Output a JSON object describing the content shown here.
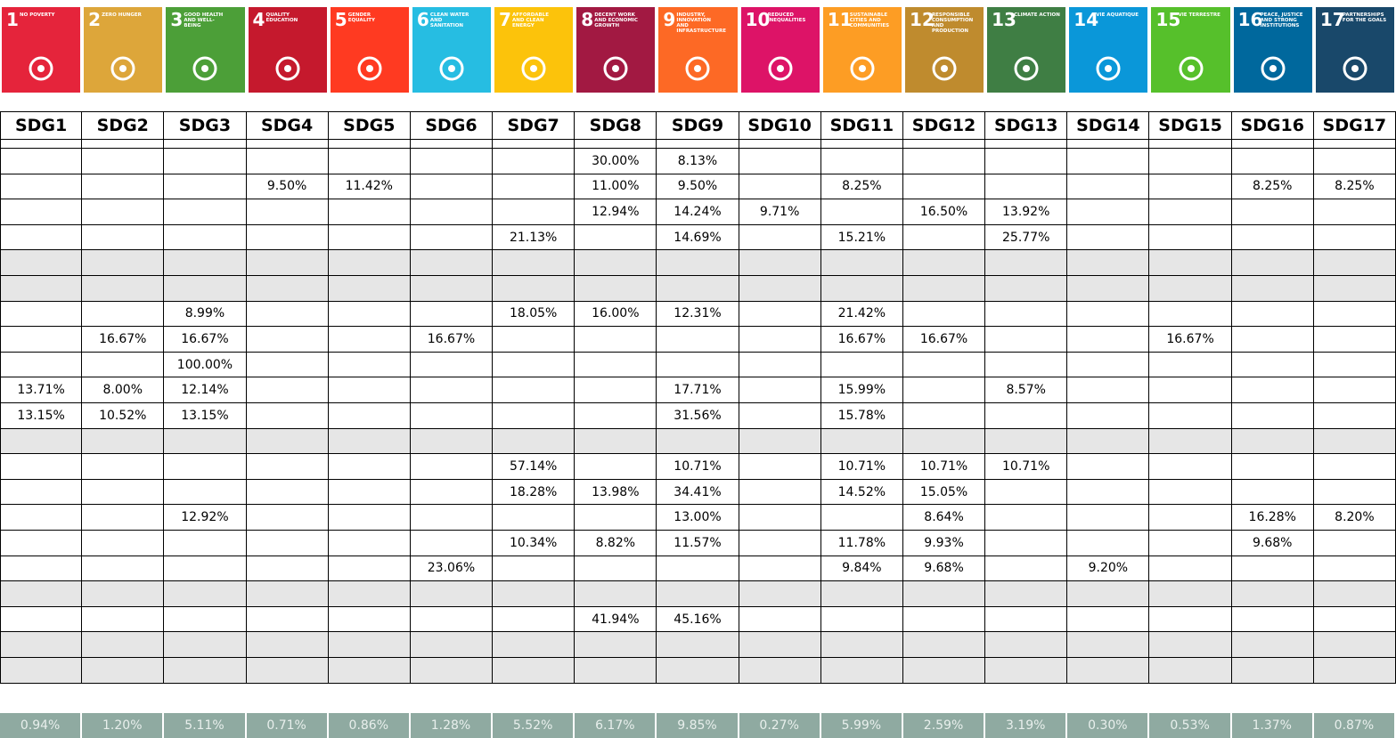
{
  "icons": [
    {
      "number": "1",
      "title": "NO POVERTY",
      "color": "#e5243b"
    },
    {
      "number": "2",
      "title": "ZERO HUNGER",
      "color": "#dda63a"
    },
    {
      "number": "3",
      "title": "GOOD HEALTH AND WELL-BEING",
      "color": "#4c9f38"
    },
    {
      "number": "4",
      "title": "QUALITY EDUCATION",
      "color": "#c5192d"
    },
    {
      "number": "5",
      "title": "GENDER EQUALITY",
      "color": "#ff3a21"
    },
    {
      "number": "6",
      "title": "CLEAN WATER AND SANITATION",
      "color": "#26bde2"
    },
    {
      "number": "7",
      "title": "AFFORDABLE AND CLEAN ENERGY",
      "color": "#fcc30b"
    },
    {
      "number": "8",
      "title": "DECENT WORK AND ECONOMIC GROWTH",
      "color": "#a21942"
    },
    {
      "number": "9",
      "title": "INDUSTRY, INNOVATION AND INFRASTRUCTURE",
      "color": "#fd6925"
    },
    {
      "number": "10",
      "title": "REDUCED INEQUALITIES",
      "color": "#dd1367"
    },
    {
      "number": "11",
      "title": "SUSTAINABLE CITIES AND COMMUNITIES",
      "color": "#fd9d24"
    },
    {
      "number": "12",
      "title": "RESPONSIBLE CONSUMPTION AND PRODUCTION",
      "color": "#bf8b2e"
    },
    {
      "number": "13",
      "title": "CLIMATE ACTION",
      "color": "#3f7e44"
    },
    {
      "number": "14",
      "title": "VIE AQUATIQUE",
      "color": "#0a97d9"
    },
    {
      "number": "15",
      "title": "VIE TERRESTRE",
      "color": "#56c02b"
    },
    {
      "number": "16",
      "title": "PEACE, JUSTICE AND STRONG INSTITUTIONS",
      "color": "#00689d"
    },
    {
      "number": "17",
      "title": "PARTNERSHIPS FOR THE GOALS",
      "color": "#19486a"
    }
  ],
  "table": {
    "header": [
      "SDG1",
      "SDG2",
      "SDG3",
      "SDG4",
      "SDG5",
      "SDG6",
      "SDG7",
      "SDG8",
      "SDG9",
      "SDG10",
      "SDG11",
      "SDG12",
      "SDG13",
      "SDG14",
      "SDG15",
      "SDG16",
      "SDG17"
    ],
    "rows": [
      {
        "cells": [
          null,
          null,
          null,
          null,
          null,
          null,
          null,
          null,
          null,
          null,
          null,
          null,
          null,
          null,
          null,
          null,
          null
        ]
      },
      {
        "cells": [
          null,
          null,
          null,
          null,
          null,
          null,
          null,
          "30.00%",
          "8.13%",
          null,
          null,
          null,
          null,
          null,
          null,
          null,
          null
        ]
      },
      {
        "cells": [
          null,
          null,
          null,
          "9.50%",
          "11.42%",
          null,
          null,
          "11.00%",
          "9.50%",
          null,
          "8.25%",
          null,
          null,
          null,
          null,
          "8.25%",
          "8.25%"
        ]
      },
      {
        "cells": [
          null,
          null,
          null,
          null,
          null,
          null,
          null,
          "12.94%",
          "14.24%",
          "9.71%",
          null,
          "16.50%",
          "13.92%",
          null,
          null,
          null,
          null
        ]
      },
      {
        "cells": [
          null,
          null,
          null,
          null,
          null,
          null,
          "21.13%",
          null,
          "14.69%",
          null,
          "15.21%",
          null,
          "25.77%",
          null,
          null,
          null,
          null
        ]
      },
      {
        "cells": [
          null,
          null,
          null,
          null,
          null,
          null,
          null,
          null,
          null,
          null,
          null,
          null,
          null,
          null,
          null,
          null,
          null
        ],
        "shaded": true
      },
      {
        "cells": [
          null,
          null,
          null,
          null,
          null,
          null,
          null,
          null,
          null,
          null,
          null,
          null,
          null,
          null,
          null,
          null,
          null
        ],
        "shaded": true
      },
      {
        "cells": [
          null,
          null,
          "8.99%",
          null,
          null,
          null,
          "18.05%",
          "16.00%",
          "12.31%",
          null,
          "21.42%",
          null,
          null,
          null,
          null,
          null,
          null
        ]
      },
      {
        "cells": [
          null,
          "16.67%",
          "16.67%",
          null,
          null,
          "16.67%",
          null,
          null,
          null,
          null,
          "16.67%",
          "16.67%",
          null,
          null,
          "16.67%",
          null,
          null
        ]
      },
      {
        "cells": [
          null,
          null,
          "100.00%",
          null,
          null,
          null,
          null,
          null,
          null,
          null,
          null,
          null,
          null,
          null,
          null,
          null,
          null
        ]
      },
      {
        "cells": [
          "13.71%",
          "8.00%",
          "12.14%",
          null,
          null,
          null,
          null,
          null,
          "17.71%",
          null,
          "15.99%",
          null,
          "8.57%",
          null,
          null,
          null,
          null
        ]
      },
      {
        "cells": [
          "13.15%",
          "10.52%",
          "13.15%",
          null,
          null,
          null,
          null,
          null,
          "31.56%",
          null,
          "15.78%",
          null,
          null,
          null,
          null,
          null,
          null
        ]
      },
      {
        "cells": [
          null,
          null,
          null,
          null,
          null,
          null,
          null,
          null,
          null,
          null,
          null,
          null,
          null,
          null,
          null,
          null,
          null
        ],
        "shaded": true
      },
      {
        "cells": [
          null,
          null,
          null,
          null,
          null,
          null,
          "57.14%",
          null,
          "10.71%",
          null,
          "10.71%",
          "10.71%",
          "10.71%",
          null,
          null,
          null,
          null
        ]
      },
      {
        "cells": [
          null,
          null,
          null,
          null,
          null,
          null,
          "18.28%",
          "13.98%",
          "34.41%",
          null,
          "14.52%",
          "15.05%",
          null,
          null,
          null,
          null,
          null
        ]
      },
      {
        "cells": [
          null,
          null,
          "12.92%",
          null,
          null,
          null,
          null,
          null,
          "13.00%",
          null,
          null,
          "8.64%",
          null,
          null,
          null,
          "16.28%",
          "8.20%"
        ]
      },
      {
        "cells": [
          null,
          null,
          null,
          null,
          null,
          null,
          "10.34%",
          "8.82%",
          "11.57%",
          null,
          "11.78%",
          "9.93%",
          null,
          null,
          null,
          "9.68%",
          null
        ]
      },
      {
        "cells": [
          null,
          null,
          null,
          null,
          null,
          "23.06%",
          null,
          null,
          null,
          null,
          "9.84%",
          "9.68%",
          null,
          "9.20%",
          null,
          null,
          null
        ]
      },
      {
        "cells": [
          null,
          null,
          null,
          null,
          null,
          null,
          null,
          null,
          null,
          null,
          null,
          null,
          null,
          null,
          null,
          null,
          null
        ],
        "shaded": true
      },
      {
        "cells": [
          null,
          null,
          null,
          null,
          null,
          null,
          null,
          "41.94%",
          "45.16%",
          null,
          null,
          null,
          null,
          null,
          null,
          null,
          null
        ]
      },
      {
        "cells": [
          null,
          null,
          null,
          null,
          null,
          null,
          null,
          null,
          null,
          null,
          null,
          null,
          null,
          null,
          null,
          null,
          null
        ],
        "shaded": true
      },
      {
        "cells": [
          null,
          null,
          null,
          null,
          null,
          null,
          null,
          null,
          null,
          null,
          null,
          null,
          null,
          null,
          null,
          null,
          null
        ],
        "shaded": true
      }
    ],
    "totals": [
      "0.94%",
      "1.20%",
      "5.11%",
      "0.71%",
      "0.86%",
      "1.28%",
      "5.52%",
      "6.17%",
      "9.85%",
      "0.27%",
      "5.99%",
      "2.59%",
      "3.19%",
      "0.30%",
      "0.53%",
      "1.37%",
      "0.87%"
    ]
  }
}
